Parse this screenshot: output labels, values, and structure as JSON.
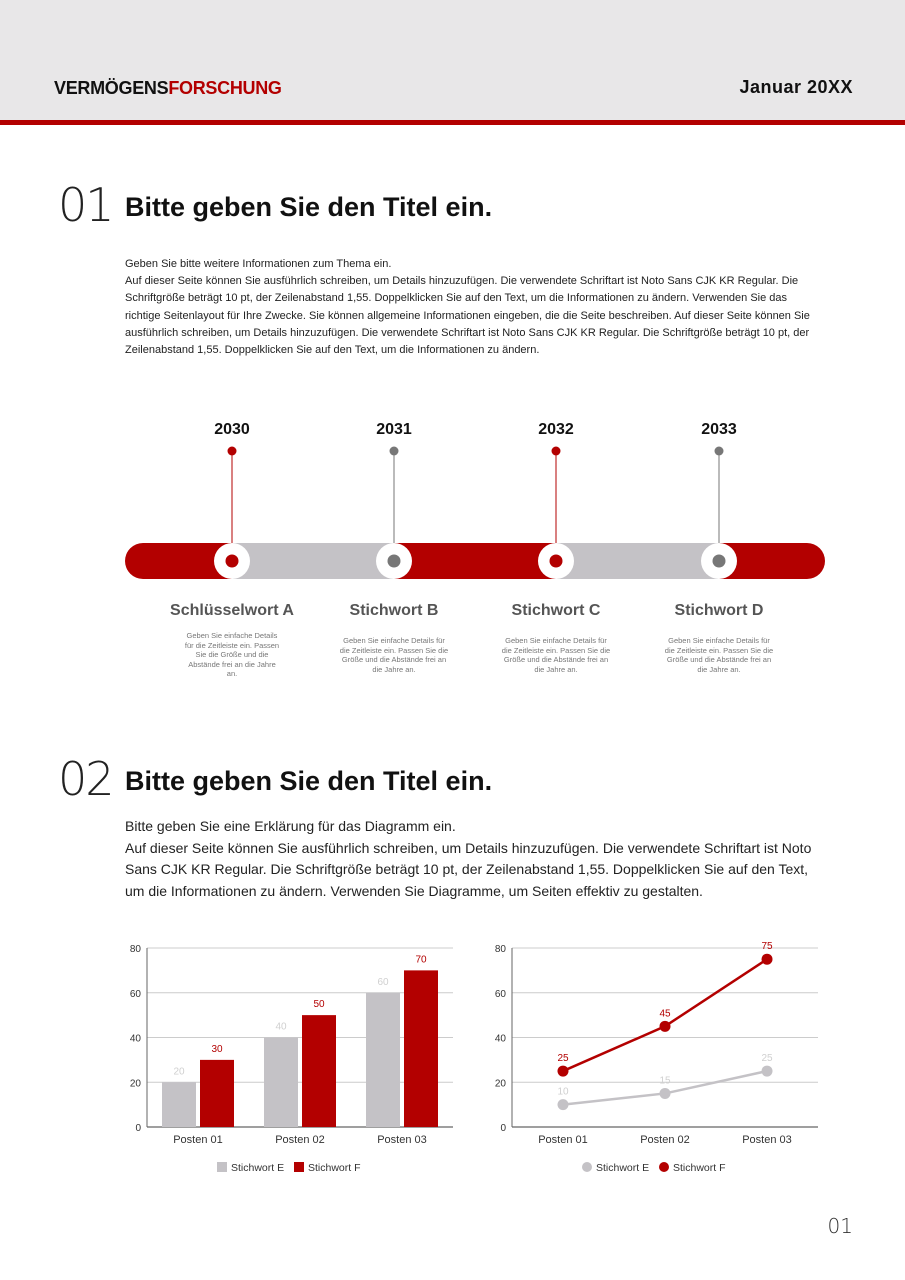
{
  "header": {
    "brand_dark": "VERMÖGENS",
    "brand_red": "FORSCHUNG",
    "date": "Januar 20XX"
  },
  "colors": {
    "accent": "#b30000",
    "gray": "#c4c2c6"
  },
  "section1": {
    "number": "01",
    "title": "Bitte geben Sie den Titel ein.",
    "lines": [
      "Geben Sie bitte weitere Informationen zum Thema ein.",
      "Auf dieser Seite können Sie ausführlich schreiben, um Details hinzuzufügen. Die verwendete Schriftart ist Noto Sans CJK KR Regular. Die Schriftgröße beträgt 10 pt, der Zeilenabstand 1,55. Doppelklicken Sie auf den Text, um die Informationen zu ändern. Verwenden Sie das richtige Seitenlayout für Ihre Zwecke. Sie können allgemeine Informationen eingeben, die die Seite beschreiben. Auf dieser Seite können Sie ausführlich schreiben, um Details hinzuzufügen. Die verwendete Schriftart ist Noto Sans CJK KR Regular. Die Schriftgröße beträgt 10 pt, der Zeilenabstand 1,55. Doppelklicken Sie auf den Text, um die Informationen zu ändern."
    ]
  },
  "timeline": [
    {
      "year": "2030",
      "keyword": "Schlüsselwort A",
      "detail": "Geben Sie einfache Details für die Zeitleiste ein. Passen Sie die Größe und die Abstände frei an die Jahre an.",
      "color": "#b30000"
    },
    {
      "year": "2031",
      "keyword": "Stichwort B",
      "detail": "Geben Sie einfache Details für die Zeitleiste ein. Passen Sie die Größe und die Abstände frei an die Jahre an.",
      "color": "#777777"
    },
    {
      "year": "2032",
      "keyword": "Stichwort C",
      "detail": "Geben Sie einfache Details für die Zeitleiste ein. Passen Sie die Größe und die Abstände frei an die Jahre an.",
      "color": "#b30000"
    },
    {
      "year": "2033",
      "keyword": "Stichwort D",
      "detail": "Geben Sie einfache Details für die Zeitleiste ein. Passen Sie die Größe und die Abstände frei an die Jahre an.",
      "color": "#777777"
    }
  ],
  "section2": {
    "number": "02",
    "title": "Bitte geben Sie den Titel ein.",
    "lines": [
      "Bitte geben Sie eine Erklärung für das Diagramm ein.",
      "Auf dieser Seite können Sie ausführlich schreiben, um Details hinzuzufügen. Die verwendete Schriftart ist Noto Sans CJK KR Regular. Die Schriftgröße beträgt 10 pt, der Zeilenabstand 1,55. Doppelklicken Sie auf den Text, um die Informationen zu ändern. Verwenden Sie Diagramme, um Seiten effektiv zu gestalten."
    ]
  },
  "chart_data": [
    {
      "type": "bar",
      "categories": [
        "Posten 01",
        "Posten 02",
        "Posten 03"
      ],
      "ylim": [
        0,
        80
      ],
      "yticks": [
        0,
        20,
        40,
        60,
        80
      ],
      "grid": true,
      "legend": "bottom",
      "series": [
        {
          "name": "Stichwort E",
          "values": [
            20,
            40,
            60
          ],
          "color": "#c4c2c6"
        },
        {
          "name": "Stichwort F",
          "values": [
            30,
            50,
            70
          ],
          "color": "#b30000"
        }
      ]
    },
    {
      "type": "line",
      "categories": [
        "Posten 01",
        "Posten 02",
        "Posten 03"
      ],
      "ylim": [
        0,
        80
      ],
      "yticks": [
        0,
        20,
        40,
        60,
        80
      ],
      "grid": true,
      "legend": "bottom",
      "series": [
        {
          "name": "Stichwort E",
          "values": [
            10,
            15,
            25
          ],
          "color": "#c4c2c6"
        },
        {
          "name": "Stichwort F",
          "values": [
            25,
            45,
            75
          ],
          "color": "#b30000"
        }
      ]
    }
  ],
  "page_number": "01"
}
